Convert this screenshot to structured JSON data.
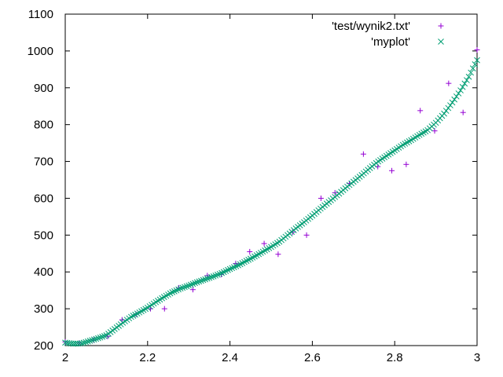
{
  "chart_data": {
    "type": "scatter",
    "title": "",
    "xlabel": "",
    "ylabel": "",
    "xlim": [
      2,
      3
    ],
    "ylim": [
      200,
      1100
    ],
    "xticks": [
      2,
      2.2,
      2.4,
      2.6,
      2.8,
      3
    ],
    "xtick_labels": [
      "2",
      "2.2",
      "2.4",
      "2.6",
      "2.8",
      "3"
    ],
    "yticks": [
      200,
      300,
      400,
      500,
      600,
      700,
      800,
      900,
      1000,
      1100
    ],
    "ytick_labels": [
      "200",
      "300",
      "400",
      "500",
      "600",
      "700",
      "800",
      "900",
      "1000",
      "1100"
    ],
    "grid": false,
    "legend_position": "top-right",
    "series": [
      {
        "name": "'test/wynik2.txt'",
        "marker": "plus",
        "color": "#9400d3",
        "x": [
          2.0,
          2.034,
          2.069,
          2.103,
          2.138,
          2.172,
          2.207,
          2.241,
          2.276,
          2.31,
          2.345,
          2.379,
          2.414,
          2.448,
          2.483,
          2.517,
          2.552,
          2.586,
          2.621,
          2.655,
          2.69,
          2.724,
          2.759,
          2.793,
          2.828,
          2.862,
          2.897,
          2.931,
          2.966,
          3.0
        ],
        "y": [
          210,
          207,
          215,
          225,
          270,
          285,
          300,
          300,
          357,
          352,
          390,
          393,
          423,
          455,
          477,
          448,
          508,
          500,
          600,
          615,
          640,
          720,
          686,
          675,
          692,
          838,
          783,
          912,
          833,
          1003
        ]
      },
      {
        "name": "'myplot'",
        "marker": "cross",
        "color": "#009e73",
        "x": [
          2.0,
          2.02,
          2.04,
          2.06,
          2.08,
          2.1,
          2.12,
          2.14,
          2.16,
          2.18,
          2.2,
          2.22,
          2.24,
          2.26,
          2.28,
          2.3,
          2.32,
          2.34,
          2.36,
          2.38,
          2.4,
          2.42,
          2.44,
          2.46,
          2.48,
          2.5,
          2.52,
          2.54,
          2.56,
          2.58,
          2.6,
          2.62,
          2.64,
          2.66,
          2.68,
          2.7,
          2.72,
          2.74,
          2.76,
          2.78,
          2.8,
          2.82,
          2.84,
          2.86,
          2.88,
          2.9,
          2.92,
          2.94,
          2.96,
          2.98,
          3.0
        ],
        "y": [
          208,
          205,
          206,
          213,
          220,
          228,
          245,
          262,
          278,
          290,
          303,
          318,
          332,
          345,
          355,
          363,
          372,
          380,
          388,
          397,
          408,
          418,
          430,
          442,
          455,
          468,
          482,
          500,
          518,
          535,
          553,
          572,
          590,
          608,
          627,
          645,
          663,
          682,
          700,
          715,
          730,
          745,
          758,
          772,
          785,
          805,
          830,
          860,
          893,
          930,
          975
        ]
      }
    ]
  }
}
